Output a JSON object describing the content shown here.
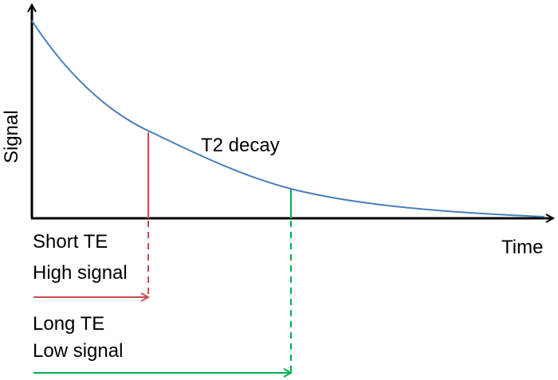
{
  "diagram": {
    "y_axis_label": "Signal",
    "x_axis_label": "Time",
    "curve_label": "T2 decay",
    "short_te": {
      "title": "Short TE",
      "signal": "High signal"
    },
    "long_te": {
      "title": "Long TE",
      "signal": "Low signal"
    }
  },
  "colors": {
    "axis": "#000000",
    "curve": "#4a7ebb",
    "short_te": "#c0504d",
    "long_te": "#00b050"
  }
}
